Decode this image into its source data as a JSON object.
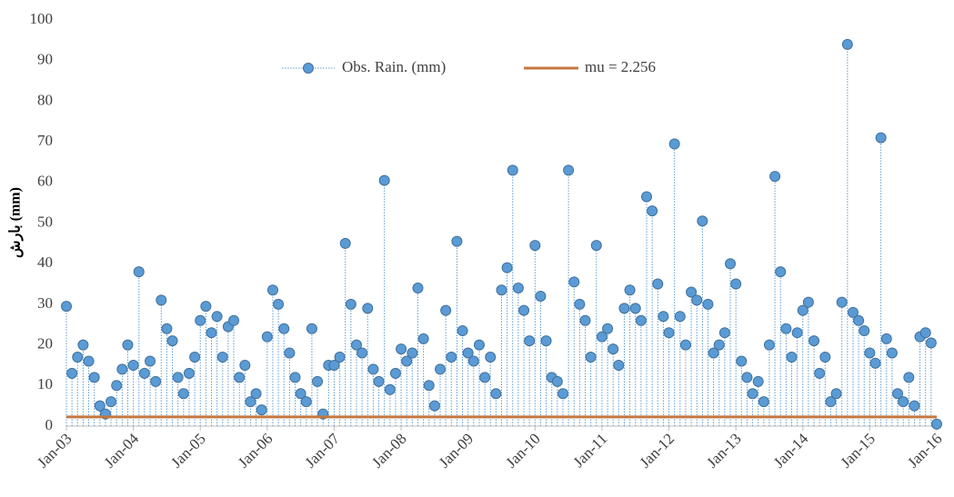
{
  "chart_data": {
    "type": "stem",
    "y_label": "بارش (mm)",
    "xlim": [
      "Jan-03",
      "Jan-16"
    ],
    "xticks": [
      "Jan-03",
      "Jan-04",
      "Jan-05",
      "Jan-06",
      "Jan-07",
      "Jan-08",
      "Jan-09",
      "Jan-10",
      "Jan-11",
      "Jan-12",
      "Jan-13",
      "Jan-14",
      "Jan-15",
      "Jan-16"
    ],
    "ylim": [
      0,
      100
    ],
    "yticks": [
      0,
      10,
      20,
      30,
      40,
      50,
      60,
      70,
      80,
      90,
      100
    ],
    "series": [
      {
        "name": "Obs. Rain. (mm)",
        "color": "#5b9bd5",
        "x": [
          "Jan-03",
          "Feb-03",
          "Mar-03",
          "Apr-03",
          "May-03",
          "Jun-03",
          "Jul-03",
          "Aug-03",
          "Sep-03",
          "Oct-03",
          "Nov-03",
          "Dec-03",
          "Jan-04",
          "Feb-04",
          "Mar-04",
          "Apr-04",
          "May-04",
          "Jun-04",
          "Jul-04",
          "Aug-04",
          "Sep-04",
          "Oct-04",
          "Nov-04",
          "Dec-04",
          "Jan-05",
          "Feb-05",
          "Mar-05",
          "Apr-05",
          "May-05",
          "Jun-05",
          "Jul-05",
          "Aug-05",
          "Sep-05",
          "Oct-05",
          "Nov-05",
          "Dec-05",
          "Jan-06",
          "Feb-06",
          "Mar-06",
          "Apr-06",
          "May-06",
          "Jun-06",
          "Jul-06",
          "Aug-06",
          "Sep-06",
          "Oct-06",
          "Nov-06",
          "Dec-06",
          "Jan-07",
          "Feb-07",
          "Mar-07",
          "Apr-07",
          "May-07",
          "Jun-07",
          "Jul-07",
          "Aug-07",
          "Sep-07",
          "Oct-07",
          "Nov-07",
          "Dec-07",
          "Jan-08",
          "Feb-08",
          "Mar-08",
          "Apr-08",
          "May-08",
          "Jun-08",
          "Jul-08",
          "Aug-08",
          "Sep-08",
          "Oct-08",
          "Nov-08",
          "Dec-08",
          "Jan-09",
          "Feb-09",
          "Mar-09",
          "Apr-09",
          "May-09",
          "Jun-09",
          "Jul-09",
          "Aug-09",
          "Sep-09",
          "Oct-09",
          "Nov-09",
          "Dec-09",
          "Jan-10",
          "Feb-10",
          "Mar-10",
          "Apr-10",
          "May-10",
          "Jun-10",
          "Jul-10",
          "Aug-10",
          "Sep-10",
          "Oct-10",
          "Nov-10",
          "Dec-10",
          "Jan-11",
          "Feb-11",
          "Mar-11",
          "Apr-11",
          "May-11",
          "Jun-11",
          "Jul-11",
          "Aug-11",
          "Sep-11",
          "Oct-11",
          "Nov-11",
          "Dec-11",
          "Jan-12",
          "Feb-12",
          "Mar-12",
          "Apr-12",
          "May-12",
          "Jun-12",
          "Jul-12",
          "Aug-12",
          "Sep-12",
          "Oct-12",
          "Nov-12",
          "Dec-12",
          "Jan-13",
          "Feb-13",
          "Mar-13",
          "Apr-13",
          "May-13",
          "Jun-13",
          "Jul-13",
          "Aug-13",
          "Sep-13",
          "Oct-13",
          "Nov-13",
          "Dec-13",
          "Jan-14",
          "Feb-14",
          "Mar-14",
          "Apr-14",
          "May-14",
          "Jun-14",
          "Jul-14",
          "Aug-14",
          "Sep-14",
          "Oct-14",
          "Nov-14",
          "Dec-14",
          "Jan-15",
          "Feb-15",
          "Mar-15",
          "Apr-15",
          "May-15",
          "Jun-15",
          "Jul-15",
          "Aug-15",
          "Sep-15",
          "Oct-15",
          "Nov-15",
          "Dec-15",
          "Jan-16"
        ],
        "values": [
          29.5,
          13,
          17,
          20,
          16,
          12,
          5,
          3,
          6,
          10,
          14,
          20,
          15,
          38,
          13,
          16,
          11,
          31,
          24,
          21,
          12,
          8,
          13,
          17,
          26,
          29.5,
          23,
          27,
          17,
          24.5,
          26,
          12,
          15,
          6,
          8,
          4,
          22,
          33.5,
          30,
          24,
          18,
          12,
          8,
          6,
          24,
          11,
          3,
          15,
          15,
          17,
          45,
          30,
          20,
          18,
          29,
          14,
          11,
          60.5,
          9,
          13,
          19,
          16,
          18,
          34,
          21.5,
          10,
          5,
          14,
          28.5,
          17,
          45.5,
          23.5,
          18,
          16,
          20,
          12,
          17,
          8,
          33.5,
          39,
          63,
          34,
          28.5,
          21,
          44.5,
          32,
          21,
          12,
          11,
          8,
          63,
          35.5,
          30,
          26,
          17,
          44.5,
          22,
          24,
          19,
          15,
          29,
          33.5,
          29,
          26,
          56.5,
          53,
          35,
          27,
          23,
          69.5,
          27,
          20,
          33,
          31,
          50.5,
          30,
          18,
          20,
          23,
          40,
          35,
          16,
          12,
          8,
          11,
          6,
          20,
          61.5,
          38,
          24,
          17,
          23,
          28.5,
          30.5,
          21,
          13,
          17,
          6,
          8,
          30.5,
          94,
          28,
          26,
          23.5,
          18,
          15.5,
          71,
          21.5,
          18,
          8,
          6,
          12,
          5,
          22,
          23,
          20.5,
          0.5
        ]
      }
    ],
    "mu": {
      "name": "mu = 2.256",
      "value": 2.256,
      "color": "#c5773f"
    }
  }
}
